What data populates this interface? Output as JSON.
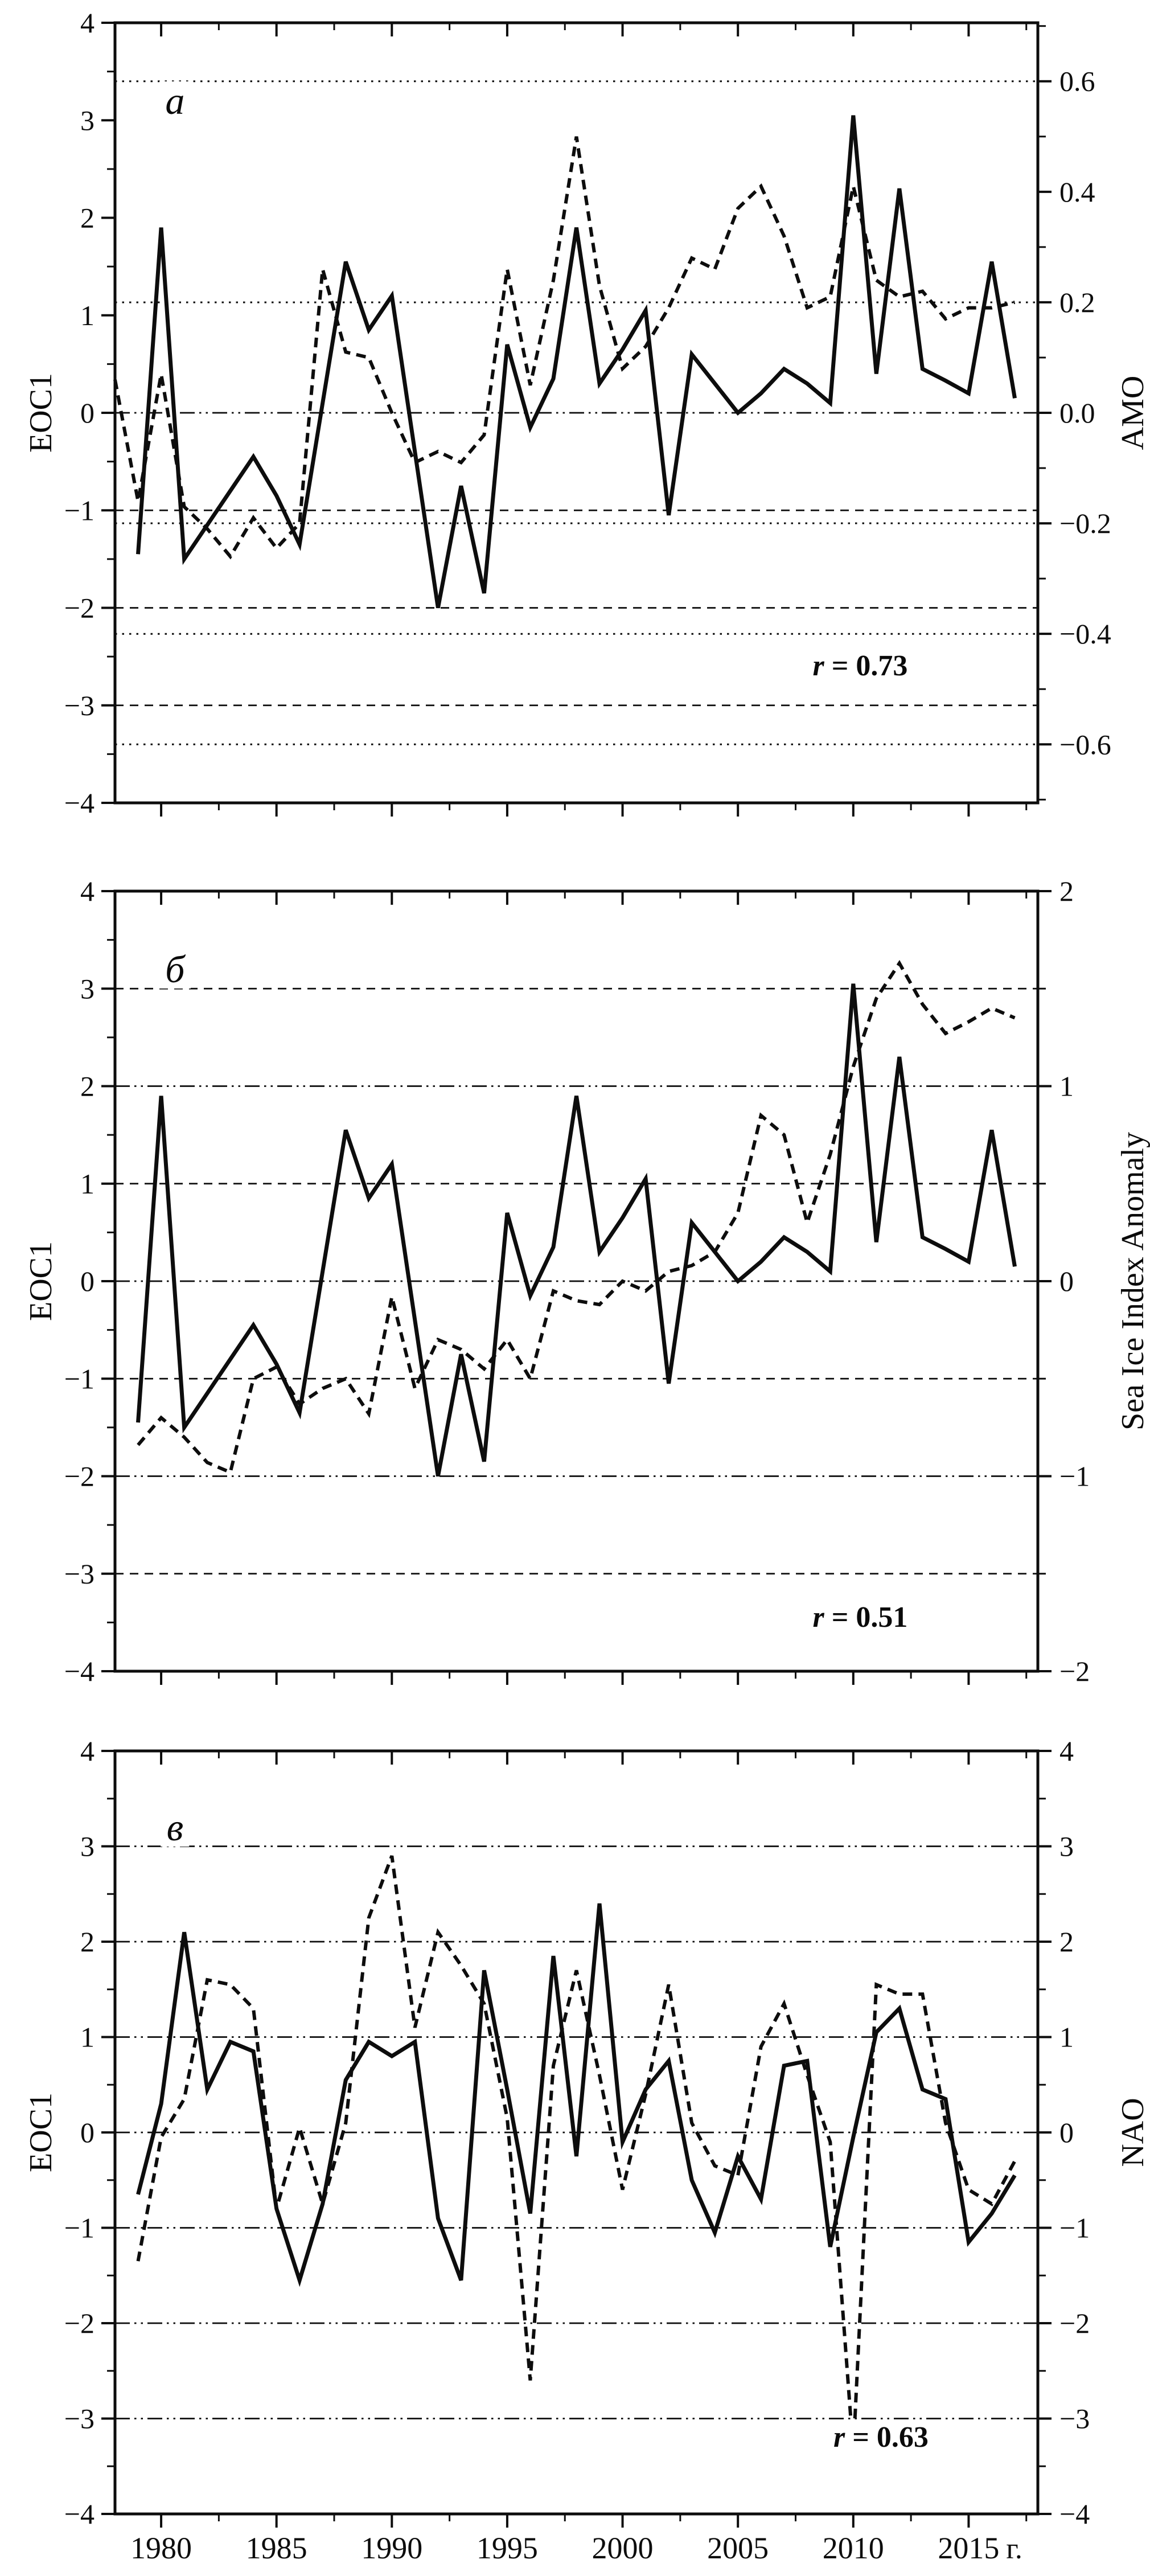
{
  "figure": {
    "description_labels": {
      "x_unit_label": "г."
    },
    "ink_color": "#0d0d0d",
    "background": "#ffffff"
  },
  "chart_data": [
    {
      "type": "line",
      "panel": "a",
      "letter": "а",
      "r_var": "r",
      "r_text": " = 0.73",
      "left_axis": {
        "label": "EOC1",
        "min": -4,
        "max": 4,
        "majors": [
          {
            "v": 4,
            "label": "4"
          },
          {
            "v": 3,
            "label": "3"
          },
          {
            "v": 2,
            "label": "2"
          },
          {
            "v": 1,
            "label": "1"
          },
          {
            "v": 0,
            "label": "0"
          },
          {
            "v": -1,
            "label": "−1"
          },
          {
            "v": -2,
            "label": "−2"
          },
          {
            "v": -3,
            "label": "−3"
          },
          {
            "v": -4,
            "label": "−4"
          }
        ],
        "minor_step": 0.5
      },
      "right_axis": {
        "label": "AMO",
        "scale": 5.6667,
        "majors": [
          {
            "v": 0.6,
            "label": "0.6"
          },
          {
            "v": 0.4,
            "label": "0.4"
          },
          {
            "v": 0.2,
            "label": "0.2"
          },
          {
            "v": 0.0,
            "label": "0.0"
          },
          {
            "v": -0.2,
            "label": "−0.2"
          },
          {
            "v": -0.4,
            "label": "−0.4"
          },
          {
            "v": -0.6,
            "label": "−0.6"
          }
        ],
        "minor_step": 0.1,
        "minor_min": -0.7,
        "minor_max": 0.7
      },
      "x_axis": {
        "min": 1978,
        "max": 2018,
        "major_ticks": [
          1980,
          1985,
          1990,
          1995,
          2000,
          2005,
          2010,
          2015
        ],
        "minor_step": 2.5,
        "tick_labels": [],
        "unit_label": ""
      },
      "gridlines": [
        {
          "v": 3.4,
          "style": "dotted"
        },
        {
          "v": 1.133,
          "style": "dotted"
        },
        {
          "v": 0,
          "style": "dashdot"
        },
        {
          "v": -1,
          "style": "dashed"
        },
        {
          "v": -1.133,
          "style": "dotted"
        },
        {
          "v": -2,
          "style": "dashed"
        },
        {
          "v": -2.267,
          "style": "dotted"
        },
        {
          "v": -3,
          "style": "dashed"
        },
        {
          "v": -3.4,
          "style": "dotted"
        }
      ],
      "series": [
        {
          "name": "EOC1",
          "style": "solid",
          "axis": "left",
          "start_year": 1979,
          "values": [
            -1.45,
            1.9,
            -1.5,
            -1.15,
            -0.8,
            -0.45,
            -0.85,
            -1.35,
            0.1,
            1.55,
            0.85,
            1.2,
            -0.4,
            -2.0,
            -0.75,
            -1.85,
            0.7,
            -0.15,
            0.35,
            1.9,
            0.3,
            0.65,
            1.05,
            -1.05,
            0.6,
            0.3,
            0.0,
            0.2,
            0.45,
            0.3,
            0.1,
            3.05,
            0.4,
            2.3,
            0.45,
            0.33,
            0.2,
            1.55,
            0.15
          ]
        },
        {
          "name": "AMO",
          "style": "dashed",
          "axis": "right",
          "start_year": 1978,
          "values": [
            0.06,
            -0.16,
            0.07,
            -0.17,
            -0.21,
            -0.26,
            -0.19,
            -0.245,
            -0.2,
            0.26,
            0.11,
            0.1,
            0.0,
            -0.09,
            -0.07,
            -0.09,
            -0.04,
            0.26,
            0.05,
            0.24,
            0.5,
            0.23,
            0.08,
            0.12,
            0.19,
            0.28,
            0.26,
            0.37,
            0.41,
            0.32,
            0.19,
            0.21,
            0.41,
            0.24,
            0.21,
            0.22,
            0.17,
            0.19,
            0.19,
            0.2
          ]
        }
      ]
    },
    {
      "type": "line",
      "panel": "b",
      "letter": "б",
      "r_var": "r",
      "r_text": " = 0.51",
      "left_axis": {
        "label": "EOC1",
        "min": -4,
        "max": 4,
        "majors": [
          {
            "v": 4,
            "label": "4"
          },
          {
            "v": 3,
            "label": "3"
          },
          {
            "v": 2,
            "label": "2"
          },
          {
            "v": 1,
            "label": "1"
          },
          {
            "v": 0,
            "label": "0"
          },
          {
            "v": -1,
            "label": "−1"
          },
          {
            "v": -2,
            "label": "−2"
          },
          {
            "v": -3,
            "label": "−3"
          },
          {
            "v": -4,
            "label": "−4"
          }
        ],
        "minor_step": 0.5
      },
      "right_axis": {
        "label": "Sea Ice Index Anomaly",
        "scale": 2,
        "majors": [
          {
            "v": 2,
            "label": "2"
          },
          {
            "v": 1,
            "label": "1"
          },
          {
            "v": 0,
            "label": "0"
          },
          {
            "v": -1,
            "label": "−1"
          },
          {
            "v": -2,
            "label": "−2"
          }
        ],
        "minor_step": 0.5,
        "minor_min": -2,
        "minor_max": 2
      },
      "x_axis": {
        "min": 1978,
        "max": 2018,
        "major_ticks": [
          1980,
          1985,
          1990,
          1995,
          2000,
          2005,
          2010,
          2015
        ],
        "minor_step": 2.5,
        "tick_labels": [],
        "unit_label": ""
      },
      "gridlines": [
        {
          "v": 3,
          "style": "dashed"
        },
        {
          "v": 2,
          "style": "dashdot"
        },
        {
          "v": 1,
          "style": "dashed"
        },
        {
          "v": 0,
          "style": "dashdot"
        },
        {
          "v": -1,
          "style": "dashed"
        },
        {
          "v": -2,
          "style": "dashdot"
        },
        {
          "v": -3,
          "style": "dashed"
        }
      ],
      "series": [
        {
          "name": "EOC1",
          "style": "solid",
          "axis": "left",
          "start_year": 1979,
          "values": [
            -1.45,
            1.9,
            -1.5,
            -1.15,
            -0.8,
            -0.45,
            -0.85,
            -1.35,
            0.1,
            1.55,
            0.85,
            1.2,
            -0.4,
            -2.0,
            -0.75,
            -1.85,
            0.7,
            -0.15,
            0.35,
            1.9,
            0.3,
            0.65,
            1.05,
            -1.05,
            0.6,
            0.3,
            0.0,
            0.2,
            0.45,
            0.3,
            0.1,
            3.05,
            0.4,
            2.3,
            0.45,
            0.33,
            0.2,
            1.55,
            0.15
          ]
        },
        {
          "name": "Sea Ice Index Anomaly",
          "style": "dashed",
          "axis": "right",
          "start_year": 1979,
          "values": [
            -0.84,
            -0.7,
            -0.8,
            -0.93,
            -0.98,
            -0.5,
            -0.44,
            -0.63,
            -0.55,
            -0.5,
            -0.68,
            -0.08,
            -0.55,
            -0.3,
            -0.35,
            -0.45,
            -0.3,
            -0.5,
            -0.05,
            -0.1,
            -0.12,
            0.0,
            -0.05,
            0.05,
            0.08,
            0.15,
            0.35,
            0.85,
            0.75,
            0.3,
            0.65,
            1.1,
            1.45,
            1.63,
            1.42,
            1.27,
            1.33,
            1.4,
            1.35
          ]
        }
      ]
    },
    {
      "type": "line",
      "panel": "v",
      "letter": "в",
      "r_var": "r",
      "r_text": " = 0.63",
      "left_axis": {
        "label": "EOC1",
        "min": -4,
        "max": 4,
        "majors": [
          {
            "v": 4,
            "label": "4"
          },
          {
            "v": 3,
            "label": "3"
          },
          {
            "v": 2,
            "label": "2"
          },
          {
            "v": 1,
            "label": "1"
          },
          {
            "v": 0,
            "label": "0"
          },
          {
            "v": -1,
            "label": "−1"
          },
          {
            "v": -2,
            "label": "−2"
          },
          {
            "v": -3,
            "label": "−3"
          },
          {
            "v": -4,
            "label": "−4"
          }
        ],
        "minor_step": 0.5
      },
      "right_axis": {
        "label": "NAO",
        "scale": 1,
        "majors": [
          {
            "v": 4,
            "label": "4"
          },
          {
            "v": 3,
            "label": "3"
          },
          {
            "v": 2,
            "label": "2"
          },
          {
            "v": 1,
            "label": "1"
          },
          {
            "v": 0,
            "label": "0"
          },
          {
            "v": -1,
            "label": "−1"
          },
          {
            "v": -2,
            "label": "−2"
          },
          {
            "v": -3,
            "label": "−3"
          },
          {
            "v": -4,
            "label": "−4"
          }
        ],
        "minor_step": 0.5,
        "minor_min": -4,
        "minor_max": 4
      },
      "x_axis": {
        "min": 1978,
        "max": 2018,
        "major_ticks": [
          1980,
          1985,
          1990,
          1995,
          2000,
          2005,
          2010,
          2015
        ],
        "minor_step": 2.5,
        "tick_labels": [
          "1980",
          "1985",
          "1990",
          "1995",
          "2000",
          "2005",
          "2010",
          "2015"
        ],
        "unit_label": "г."
      },
      "gridlines": [
        {
          "v": 3,
          "style": "dashdot"
        },
        {
          "v": 2,
          "style": "dashdot"
        },
        {
          "v": 1,
          "style": "dashdot"
        },
        {
          "v": 0,
          "style": "dashdot"
        },
        {
          "v": -1,
          "style": "dashdot"
        },
        {
          "v": -2,
          "style": "dashdot"
        },
        {
          "v": -3,
          "style": "dashdot"
        }
      ],
      "series": [
        {
          "name": "EOC1",
          "style": "solid",
          "axis": "left",
          "start_year": 1979,
          "values": [
            -0.65,
            0.3,
            2.1,
            0.45,
            0.95,
            0.85,
            -0.8,
            -1.55,
            -0.75,
            0.55,
            0.95,
            0.8,
            0.95,
            -0.9,
            -1.55,
            1.7,
            0.45,
            -0.85,
            1.85,
            -0.25,
            2.4,
            -0.1,
            0.45,
            0.75,
            -0.5,
            -1.05,
            -0.25,
            -0.7,
            0.7,
            0.75,
            -1.2,
            -0.05,
            1.05,
            1.3,
            0.45,
            0.35,
            -1.15,
            -0.85,
            -0.45
          ]
        },
        {
          "name": "NAO",
          "style": "dashed",
          "axis": "right",
          "start_year": 1979,
          "values": [
            -1.35,
            -0.05,
            0.35,
            1.6,
            1.55,
            1.3,
            -0.8,
            0.05,
            -0.75,
            0.1,
            2.25,
            2.9,
            1.1,
            2.1,
            1.75,
            1.35,
            0.15,
            -2.6,
            0.7,
            1.7,
            0.6,
            -0.6,
            0.4,
            1.55,
            0.1,
            -0.35,
            -0.45,
            0.9,
            1.35,
            0.6,
            -0.1,
            -3.35,
            1.55,
            1.45,
            1.45,
            0.1,
            -0.6,
            -0.75,
            -0.3
          ]
        }
      ]
    }
  ]
}
